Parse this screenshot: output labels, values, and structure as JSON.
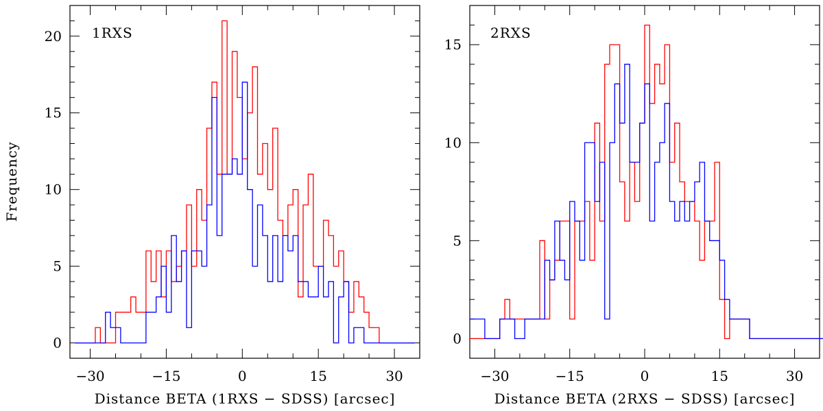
{
  "chart_data": [
    {
      "type": "histogram-step",
      "panel_label": "1RXS",
      "xlabel": "Distance BETA (1RXS − SDSS) [arcsec]",
      "ylabel": "Frequency",
      "xlim": [
        -34,
        35
      ],
      "ylim": [
        -1,
        22
      ],
      "xticks": [
        -30,
        -15,
        0,
        15,
        30
      ],
      "xtick_labels": [
        "−30",
        "−15",
        "0",
        "15",
        "30"
      ],
      "yticks": [
        0,
        5,
        10,
        15,
        20
      ],
      "ytick_labels": [
        "0",
        "5",
        "10",
        "15",
        "20"
      ],
      "bin_start": -33,
      "bin_width": 1,
      "series": [
        {
          "name": "red",
          "color": "#ff0000",
          "values": [
            0,
            0,
            0,
            0,
            1,
            0,
            0,
            0,
            2,
            2,
            2,
            3,
            2,
            2,
            6,
            4,
            6,
            3,
            6,
            4,
            5,
            6,
            9,
            5,
            10,
            8,
            14,
            17,
            11,
            21,
            11,
            19,
            16,
            12,
            15,
            18,
            11,
            13,
            10,
            14,
            8,
            7,
            9,
            10,
            3,
            9,
            11,
            5,
            5,
            8,
            7,
            5,
            6,
            4,
            2,
            4,
            3,
            2,
            1,
            1,
            0,
            0,
            0,
            0,
            0,
            0,
            0
          ]
        },
        {
          "name": "blue",
          "color": "#0000ff",
          "values": [
            0,
            0,
            0,
            0,
            0,
            0,
            2,
            1,
            1,
            0,
            0,
            0,
            0,
            0,
            2,
            2,
            3,
            5,
            2,
            7,
            4,
            6,
            1,
            6,
            6,
            5,
            9,
            16,
            7,
            11,
            11,
            12,
            11,
            17,
            10,
            5,
            9,
            7,
            4,
            7,
            4,
            7,
            6,
            7,
            4,
            4,
            3,
            3,
            5,
            3,
            4,
            0,
            3,
            4,
            0,
            1,
            1,
            0,
            0,
            0,
            0,
            0,
            0,
            0,
            0,
            0,
            0
          ]
        }
      ]
    },
    {
      "type": "histogram-step",
      "panel_label": "2RXS",
      "xlabel": "Distance BETA (2RXS − SDSS) [arcsec]",
      "ylabel": "",
      "xlim": [
        -35,
        35
      ],
      "ylim": [
        -1,
        17
      ],
      "xticks": [
        -30,
        -15,
        0,
        15,
        30
      ],
      "xtick_labels": [
        "−30",
        "−15",
        "0",
        "15",
        "30"
      ],
      "yticks": [
        0,
        5,
        10,
        15
      ],
      "ytick_labels": [
        "0",
        "5",
        "10",
        "15"
      ],
      "bin_start": -35,
      "bin_width": 1,
      "series": [
        {
          "name": "red",
          "color": "#ff0000",
          "values": [
            0,
            0,
            0,
            0,
            0,
            0,
            1,
            2,
            1,
            1,
            1,
            1,
            1,
            1,
            5,
            1,
            3,
            4,
            6,
            6,
            1,
            6,
            6,
            7,
            4,
            11,
            6,
            14,
            15,
            15,
            8,
            6,
            9,
            7,
            11,
            16,
            12,
            14,
            13,
            15,
            9,
            11,
            8,
            7,
            7,
            6,
            4,
            6,
            6,
            9,
            2,
            0,
            1,
            1,
            1,
            1,
            0,
            0,
            0,
            0,
            0,
            0,
            0,
            0,
            0,
            0,
            0,
            0,
            0,
            0,
            0
          ]
        },
        {
          "name": "blue",
          "color": "#0000ff",
          "values": [
            1,
            1,
            1,
            0,
            0,
            0,
            1,
            1,
            1,
            0,
            0,
            1,
            1,
            1,
            1,
            4,
            3,
            6,
            4,
            3,
            7,
            6,
            4,
            10,
            10,
            7,
            9,
            1,
            10,
            13,
            11,
            14,
            9,
            9,
            11,
            13,
            6,
            9,
            10,
            12,
            7,
            6,
            7,
            6,
            7,
            8,
            9,
            6,
            5,
            5,
            4,
            2,
            1,
            1,
            1,
            1,
            0,
            0,
            0,
            0,
            0,
            0,
            0,
            0,
            0,
            0,
            0,
            0,
            0,
            0,
            0
          ]
        }
      ]
    }
  ]
}
